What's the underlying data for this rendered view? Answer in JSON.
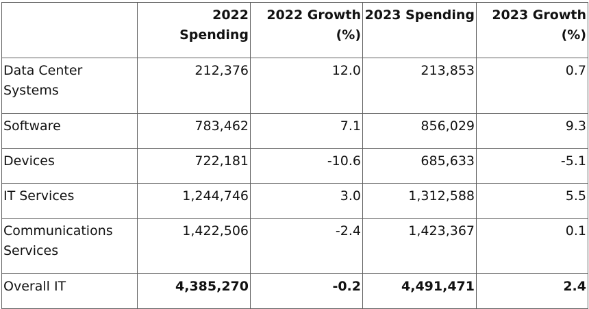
{
  "table": {
    "headers": [
      "",
      "2022 Spending",
      "2022 Growth (%)",
      "2023 Spending",
      "2023 Growth (%)"
    ],
    "rows": [
      [
        "Data Center Systems",
        "212,376",
        "12.0",
        "213,853",
        "0.7"
      ],
      [
        "Software",
        "783,462",
        "7.1",
        "856,029",
        "9.3"
      ],
      [
        "Devices",
        "722,181",
        "-10.6",
        "685,633",
        "-5.1"
      ],
      [
        "IT Services",
        "1,244,746",
        "3.0",
        "1,312,588",
        "5.5"
      ],
      [
        "Communications Services",
        "1,422,506",
        "-2.4",
        "1,423,367",
        "0.1"
      ],
      [
        "Overall IT",
        "4,385,270",
        "-0.2",
        "4,491,471",
        "2.4"
      ]
    ]
  }
}
